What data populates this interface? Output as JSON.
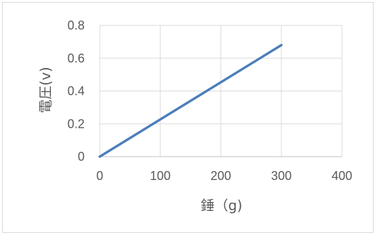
{
  "chart_data": {
    "type": "line",
    "title": "",
    "xlabel": "錘（g)",
    "ylabel": "電圧(v)",
    "xlim": [
      0,
      400
    ],
    "ylim": [
      0,
      0.8
    ],
    "xticks": [
      "0",
      "100",
      "200",
      "300",
      "400"
    ],
    "yticks": [
      "0",
      "0.2",
      "0.4",
      "0.6",
      "0.8"
    ],
    "grid": true,
    "legend": "none",
    "series": [
      {
        "color": "#4a7ebb",
        "x": [
          0,
          300
        ],
        "y": [
          0,
          0.68
        ]
      }
    ]
  }
}
